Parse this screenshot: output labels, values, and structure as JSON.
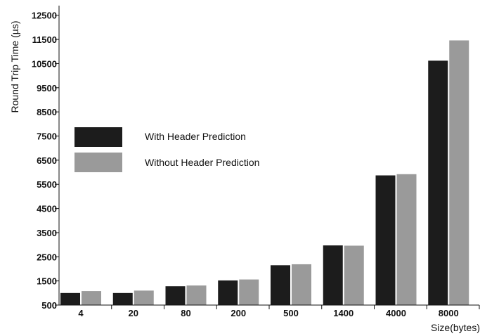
{
  "chart_data": {
    "type": "bar",
    "title": "",
    "xlabel": "Size(bytes)",
    "ylabel": "Round Trip Time (µs)",
    "categories": [
      "4",
      "20",
      "80",
      "200",
      "500",
      "1400",
      "4000",
      "8000"
    ],
    "series": [
      {
        "name": "With Header Prediction",
        "color": "#1c1c1c",
        "values": [
          1000,
          1000,
          1280,
          1520,
          2150,
          2970,
          5870,
          10620
        ]
      },
      {
        "name": "Without Header Prediction",
        "color": "#9a9a9a",
        "values": [
          1080,
          1100,
          1310,
          1560,
          2190,
          2960,
          5920,
          11460
        ]
      }
    ],
    "yticks": [
      500,
      1500,
      2500,
      3500,
      4500,
      5500,
      6500,
      7500,
      8500,
      9500,
      10500,
      11500,
      12500
    ],
    "ylim": [
      500,
      12900
    ],
    "grid": false,
    "legend_position": "upper-left"
  }
}
